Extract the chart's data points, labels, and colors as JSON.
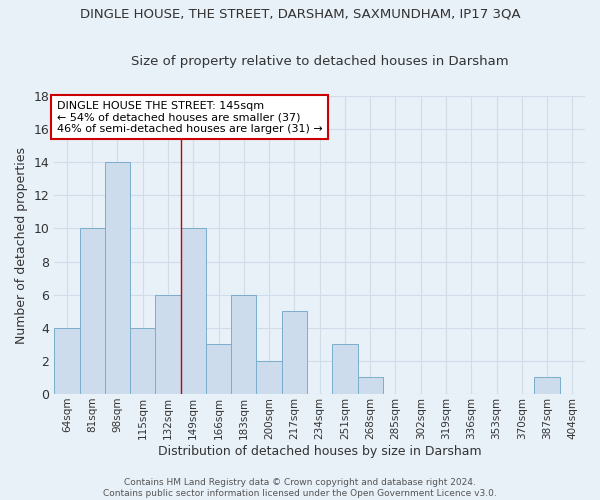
{
  "title": "DINGLE HOUSE, THE STREET, DARSHAM, SAXMUNDHAM, IP17 3QA",
  "subtitle": "Size of property relative to detached houses in Darsham",
  "xlabel": "Distribution of detached houses by size in Darsham",
  "ylabel": "Number of detached properties",
  "categories": [
    "64sqm",
    "81sqm",
    "98sqm",
    "115sqm",
    "132sqm",
    "149sqm",
    "166sqm",
    "183sqm",
    "200sqm",
    "217sqm",
    "234sqm",
    "251sqm",
    "268sqm",
    "285sqm",
    "302sqm",
    "319sqm",
    "336sqm",
    "353sqm",
    "370sqm",
    "387sqm",
    "404sqm"
  ],
  "values": [
    4,
    10,
    14,
    4,
    6,
    10,
    3,
    6,
    2,
    5,
    0,
    3,
    1,
    0,
    0,
    0,
    0,
    0,
    0,
    1,
    0
  ],
  "bar_color": "#ccdcec",
  "bar_edge_color": "#7aadcc",
  "grid_color": "#d0dce8",
  "background_color": "#e8f0f8",
  "red_line_x": 4.5,
  "annotation_text": "DINGLE HOUSE THE STREET: 145sqm\n← 54% of detached houses are smaller (37)\n46% of semi-detached houses are larger (31) →",
  "annotation_box_color": "#ffffff",
  "annotation_box_edge": "#cc0000",
  "ylim": [
    0,
    18
  ],
  "yticks": [
    0,
    2,
    4,
    6,
    8,
    10,
    12,
    14,
    16,
    18
  ],
  "footer": "Contains HM Land Registry data © Crown copyright and database right 2024.\nContains public sector information licensed under the Open Government Licence v3.0."
}
